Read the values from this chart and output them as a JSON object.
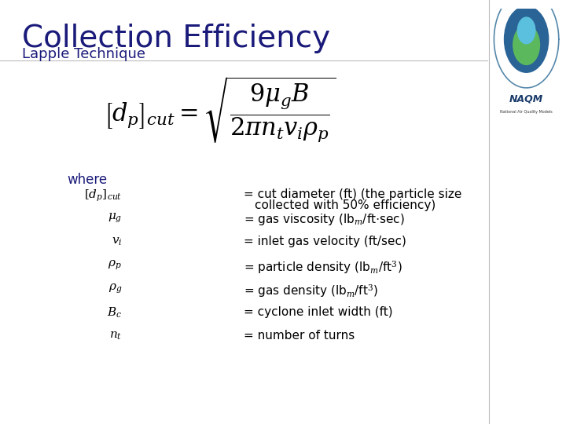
{
  "title": "Collection Efficiency",
  "subtitle": "Lapple Technique",
  "title_color": "#1a1a7a",
  "subtitle_color": "#1a1a7a",
  "where_color": "#1a1a7a",
  "formula_color": "#000000",
  "def_color": "#000000",
  "background_color": "#ffffff",
  "title_fontsize": 28,
  "subtitle_fontsize": 13,
  "formula_fontsize": 22,
  "where_fontsize": 12,
  "def_fontsize": 11,
  "definitions": [
    {
      "symbol": "$[d_p]_{cut}$",
      "def_line1": "= cut diameter (ft) (the particle size",
      "def_line2": "collected with 50% efficiency)"
    },
    {
      "symbol": "$\\mu_g$",
      "def_line1": "= gas viscosity (lb$_m$/ft$\\cdot$sec)",
      "def_line2": ""
    },
    {
      "symbol": "$v_i$",
      "def_line1": "= inlet gas velocity (ft/sec)",
      "def_line2": ""
    },
    {
      "symbol": "$\\rho_p$",
      "def_line1": "= particle density (lb$_m$/ft$^3$)",
      "def_line2": ""
    },
    {
      "symbol": "$\\rho_g$",
      "def_line1": "= gas density (lb$_m$/ft$^3$)",
      "def_line2": ""
    },
    {
      "symbol": "$B_c$",
      "def_line1": "= cyclone inlet width (ft)",
      "def_line2": ""
    },
    {
      "symbol": "$n_t$",
      "def_line1": "= number of turns",
      "def_line2": ""
    }
  ]
}
